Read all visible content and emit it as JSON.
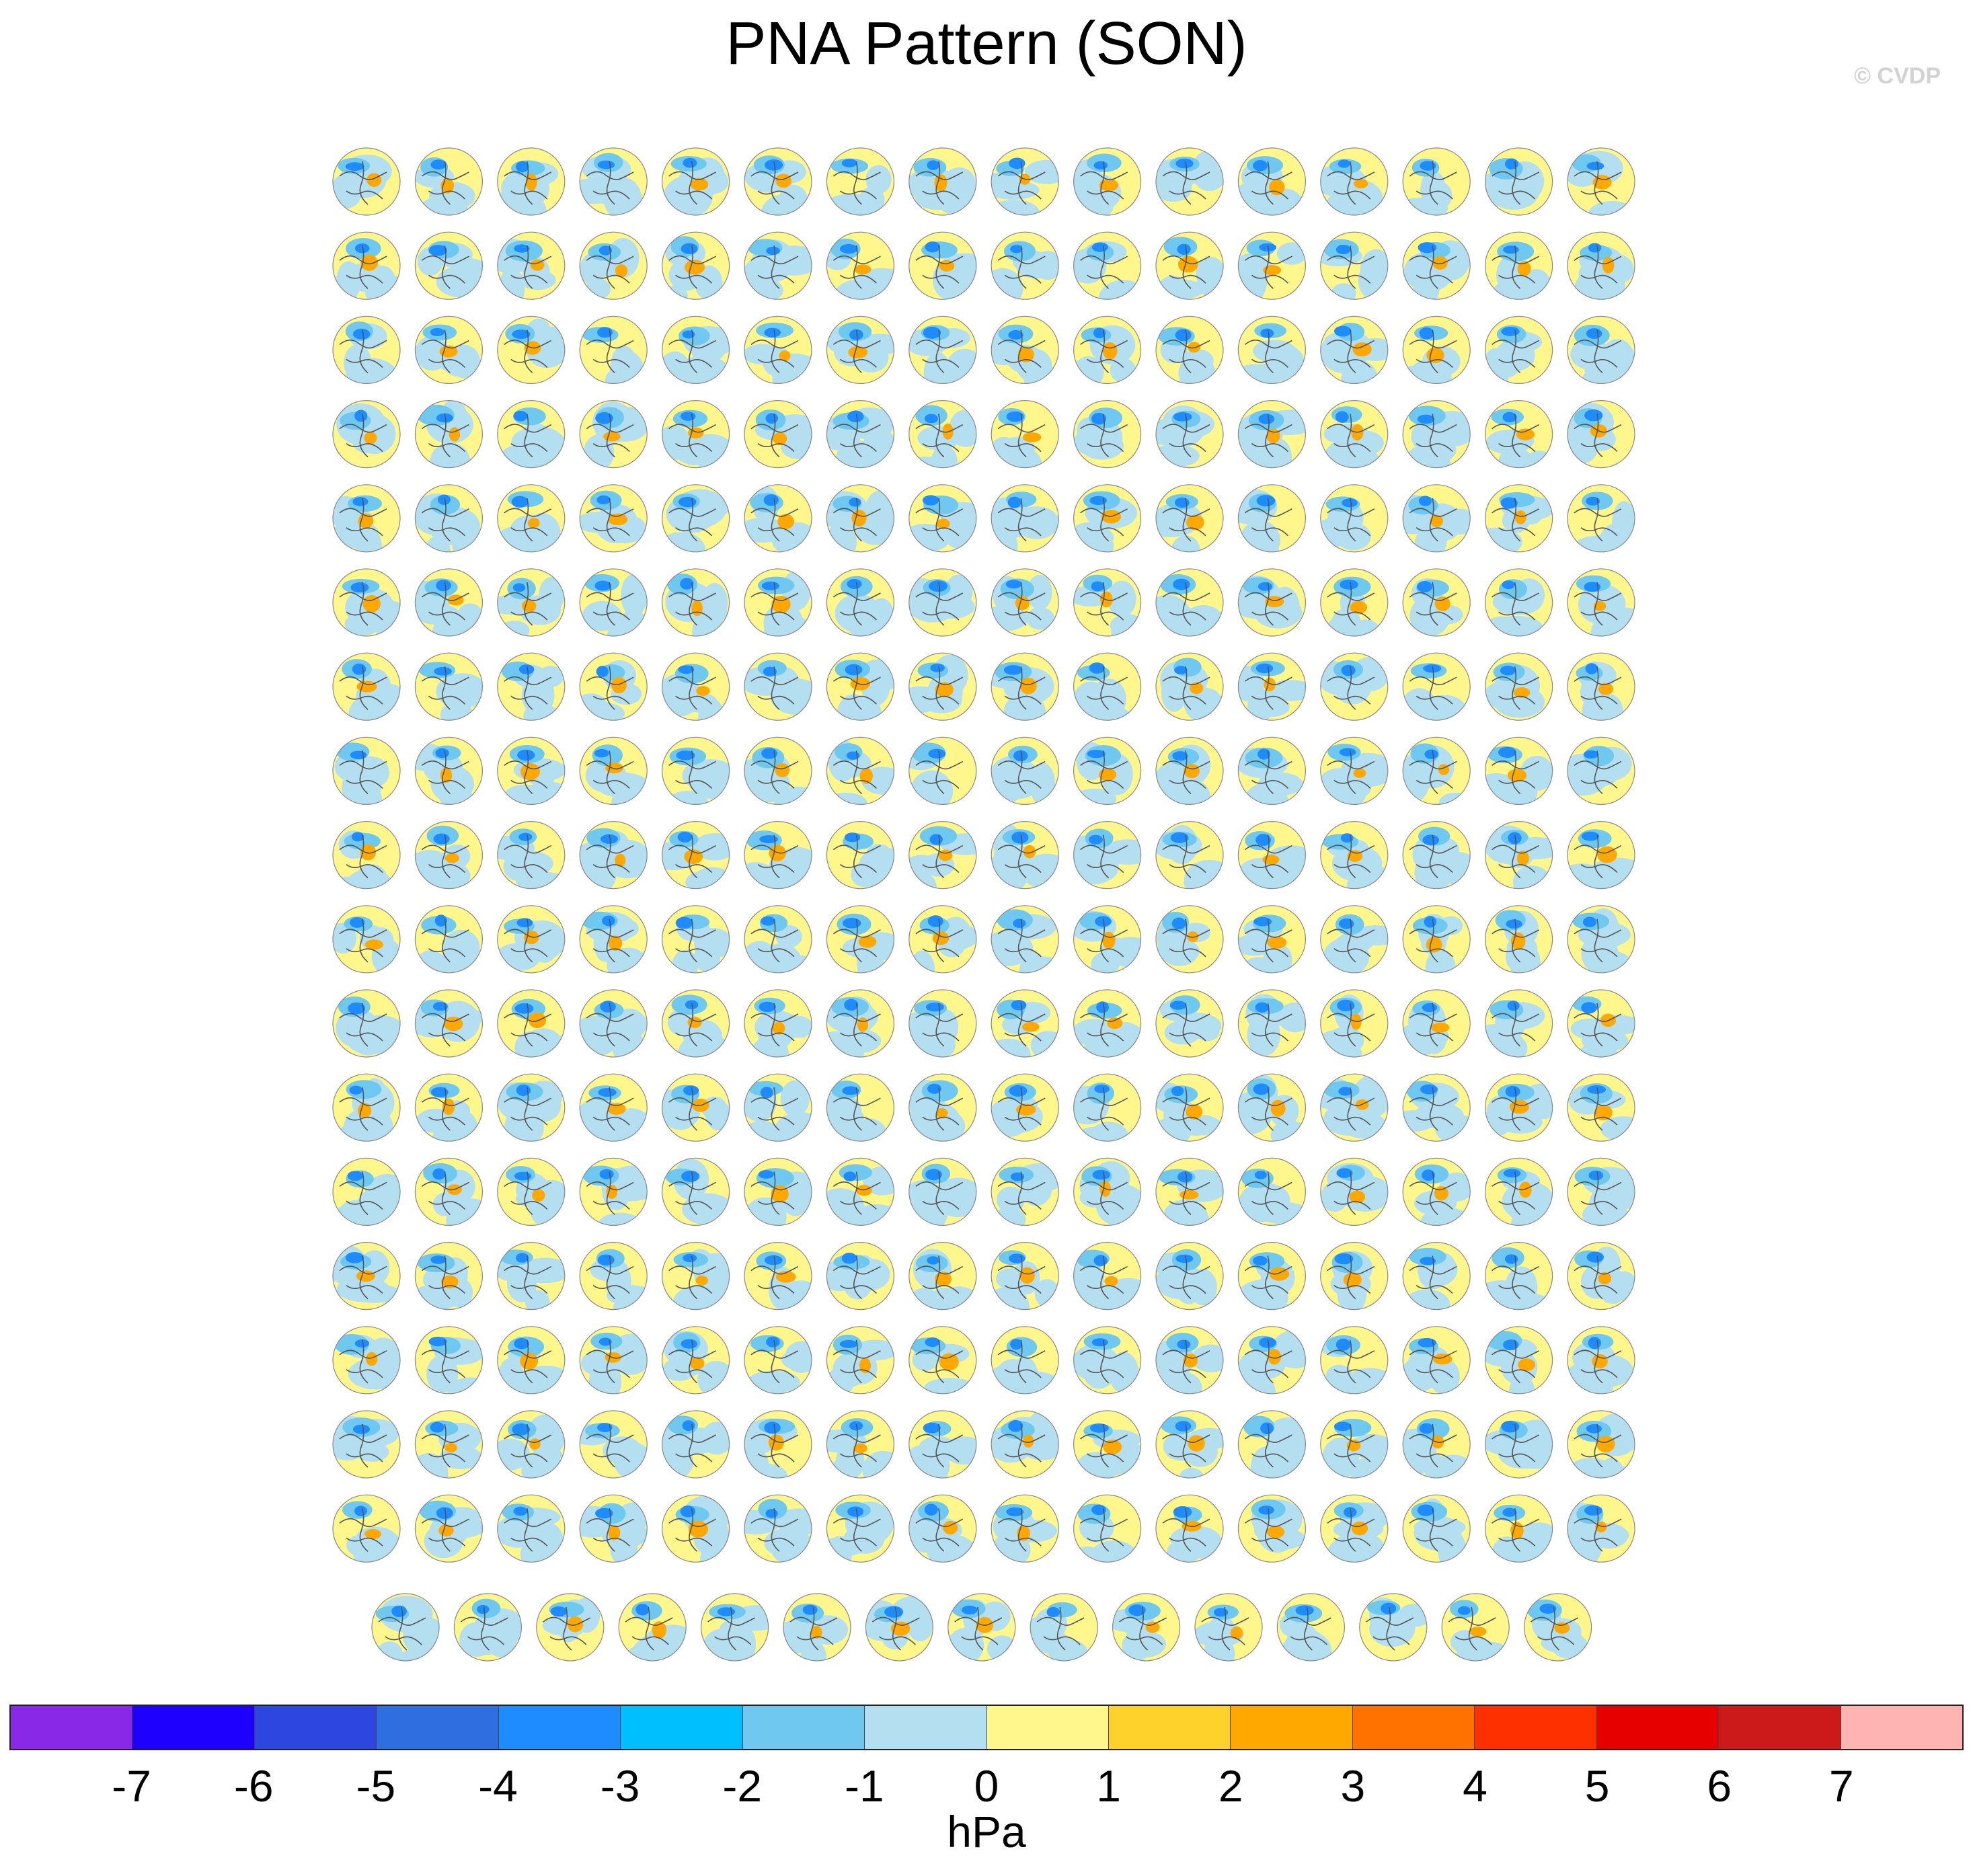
{
  "figure": {
    "title": "PNA Pattern (SON)",
    "credit": "© CVDP"
  },
  "map_grid": {
    "projection": "north-polar-stereographic",
    "rows_full": 17,
    "cols_full": 16,
    "last_row_count": 15,
    "panel_count": 287
  },
  "colorbar": {
    "colors": [
      "#8a28e8",
      "#1e00ff",
      "#2d46e0",
      "#2f6ee0",
      "#1e8cff",
      "#00bfff",
      "#6fc8f0",
      "#b3dff0",
      "#fff68c",
      "#ffd12a",
      "#ffa800",
      "#ff7200",
      "#ff3000",
      "#e60000",
      "#cc1a1a",
      "#ffb4b4"
    ],
    "ticks": [
      "-7",
      "-6",
      "-5",
      "-4",
      "-3",
      "-2",
      "-1",
      "0",
      "1",
      "2",
      "3",
      "4",
      "5",
      "6",
      "7"
    ],
    "unit": "hPa"
  }
}
